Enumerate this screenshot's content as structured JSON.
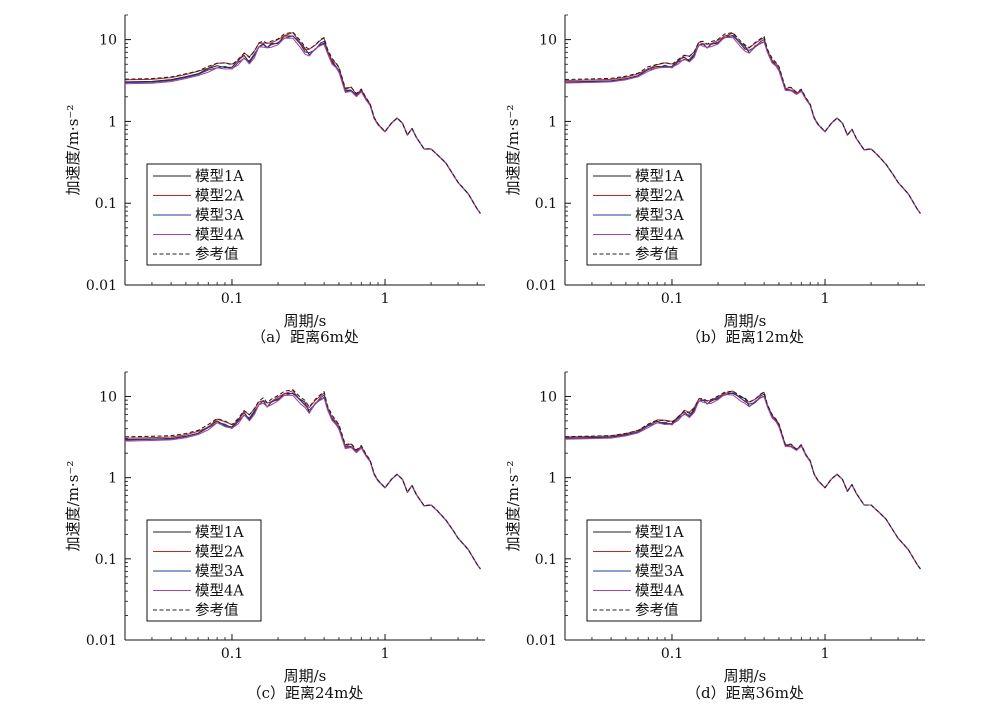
{
  "chart_data": [
    {
      "type": "line",
      "caption": "（a）距离6m处",
      "xlabel": "周期/s",
      "ylabel": "加速度/m·s⁻²",
      "xscale": "log",
      "yscale": "log",
      "xlim": [
        0.02,
        4.5
      ],
      "ylim": [
        0.01,
        20
      ],
      "xticks": [
        "0.1",
        "1"
      ],
      "yticks": [
        "0.01",
        "0.1",
        "1",
        "10"
      ],
      "legend_position": "lower-left",
      "series": [
        {
          "name": "模型1A",
          "color": "#222222",
          "dash": "solid",
          "scale": 0.98
        },
        {
          "name": "模型2A",
          "color": "#c0262c",
          "dash": "solid",
          "scale": 1.04
        },
        {
          "name": "模型3A",
          "color": "#1f3f8f",
          "dash": "solid",
          "scale": 0.96
        },
        {
          "name": "模型4A",
          "color": "#b0409a",
          "dash": "solid",
          "scale": 0.93
        },
        {
          "name": "参考值",
          "color": "#222222",
          "dash": "dashed",
          "scale": 1.06
        }
      ],
      "x": [
        0.02,
        0.03,
        0.04,
        0.05,
        0.06,
        0.07,
        0.08,
        0.09,
        0.1,
        0.11,
        0.12,
        0.13,
        0.14,
        0.15,
        0.16,
        0.17,
        0.18,
        0.2,
        0.22,
        0.25,
        0.28,
        0.3,
        0.32,
        0.35,
        0.38,
        0.4,
        0.42,
        0.45,
        0.48,
        0.5,
        0.55,
        0.6,
        0.65,
        0.7,
        0.75,
        0.8,
        0.85,
        0.9,
        1.0,
        1.1,
        1.2,
        1.3,
        1.4,
        1.5,
        1.6,
        1.8,
        2.0,
        2.2,
        2.5,
        2.8,
        3.0,
        3.5,
        4.0,
        4.2
      ],
      "reference": [
        3.1,
        3.15,
        3.3,
        3.6,
        3.9,
        4.4,
        4.8,
        4.8,
        4.6,
        5.4,
        6.3,
        5.6,
        6.7,
        8.5,
        8.9,
        8.4,
        8.9,
        9.4,
        11.0,
        11.5,
        9.0,
        7.5,
        7.0,
        8.0,
        9.3,
        9.8,
        7.2,
        5.5,
        4.8,
        4.3,
        2.4,
        2.5,
        2.1,
        2.4,
        1.9,
        1.6,
        1.1,
        0.92,
        0.75,
        0.95,
        1.1,
        0.95,
        0.68,
        0.82,
        0.64,
        0.46,
        0.46,
        0.39,
        0.31,
        0.22,
        0.18,
        0.13,
        0.085,
        0.075
      ]
    },
    {
      "type": "line",
      "caption": "（b）距离12m处",
      "xlabel": "周期/s",
      "ylabel": "加速度/m·s⁻²",
      "xscale": "log",
      "yscale": "log",
      "xlim": [
        0.02,
        4.5
      ],
      "ylim": [
        0.01,
        20
      ],
      "xticks": [
        "0.1",
        "1"
      ],
      "yticks": [
        "0.01",
        "0.1",
        "1",
        "10"
      ],
      "legend_position": "lower-left",
      "series": [
        {
          "name": "模型1A",
          "color": "#222222",
          "dash": "solid",
          "scale": 0.98
        },
        {
          "name": "模型2A",
          "color": "#c0262c",
          "dash": "solid",
          "scale": 1.02
        },
        {
          "name": "模型3A",
          "color": "#1f3f8f",
          "dash": "solid",
          "scale": 0.97
        },
        {
          "name": "模型4A",
          "color": "#b0409a",
          "dash": "solid",
          "scale": 0.95
        },
        {
          "name": "参考值",
          "color": "#222222",
          "dash": "dashed",
          "scale": 1.05
        }
      ],
      "x": [
        0.02,
        0.03,
        0.04,
        0.05,
        0.06,
        0.07,
        0.08,
        0.09,
        0.1,
        0.11,
        0.12,
        0.13,
        0.14,
        0.15,
        0.16,
        0.17,
        0.18,
        0.2,
        0.22,
        0.25,
        0.28,
        0.3,
        0.32,
        0.35,
        0.38,
        0.4,
        0.42,
        0.45,
        0.48,
        0.5,
        0.55,
        0.6,
        0.65,
        0.7,
        0.75,
        0.8,
        0.85,
        0.9,
        1.0,
        1.1,
        1.2,
        1.3,
        1.4,
        1.5,
        1.6,
        1.8,
        2.0,
        2.2,
        2.5,
        2.8,
        3.0,
        3.5,
        4.0,
        4.2
      ],
      "reference": [
        3.1,
        3.15,
        3.2,
        3.4,
        3.7,
        4.4,
        4.7,
        4.9,
        4.7,
        5.4,
        6.0,
        5.8,
        6.7,
        8.9,
        8.9,
        8.3,
        8.9,
        9.4,
        11.0,
        11.5,
        9.0,
        8.0,
        7.4,
        8.6,
        9.6,
        10.2,
        7.2,
        5.6,
        4.9,
        4.4,
        2.5,
        2.5,
        2.2,
        2.4,
        1.9,
        1.6,
        1.1,
        0.92,
        0.75,
        0.95,
        1.1,
        0.95,
        0.68,
        0.8,
        0.62,
        0.45,
        0.46,
        0.39,
        0.3,
        0.22,
        0.18,
        0.13,
        0.085,
        0.075
      ]
    },
    {
      "type": "line",
      "caption": "（c）距离24m处",
      "xlabel": "周期/s",
      "ylabel": "加速度/m·s⁻²",
      "xscale": "log",
      "yscale": "log",
      "xlim": [
        0.02,
        4.5
      ],
      "ylim": [
        0.01,
        20
      ],
      "xticks": [
        "0.1",
        "1"
      ],
      "yticks": [
        "0.01",
        "0.1",
        "1",
        "10"
      ],
      "legend_position": "lower-left",
      "series": [
        {
          "name": "模型1A",
          "color": "#222222",
          "dash": "solid",
          "scale": 0.98
        },
        {
          "name": "模型2A",
          "color": "#c0262c",
          "dash": "solid",
          "scale": 1.02
        },
        {
          "name": "模型3A",
          "color": "#1f3f8f",
          "dash": "solid",
          "scale": 0.97
        },
        {
          "name": "模型4A",
          "color": "#b0409a",
          "dash": "solid",
          "scale": 0.94
        },
        {
          "name": "参考值",
          "color": "#222222",
          "dash": "dashed",
          "scale": 1.06
        }
      ],
      "x": [
        0.02,
        0.03,
        0.04,
        0.05,
        0.06,
        0.07,
        0.08,
        0.09,
        0.1,
        0.11,
        0.12,
        0.13,
        0.14,
        0.15,
        0.16,
        0.17,
        0.18,
        0.2,
        0.22,
        0.25,
        0.28,
        0.3,
        0.32,
        0.35,
        0.38,
        0.4,
        0.42,
        0.45,
        0.48,
        0.5,
        0.55,
        0.6,
        0.65,
        0.7,
        0.75,
        0.8,
        0.85,
        0.9,
        1.0,
        1.1,
        1.2,
        1.3,
        1.4,
        1.5,
        1.6,
        1.8,
        2.0,
        2.2,
        2.5,
        2.8,
        3.0,
        3.5,
        4.0,
        4.2
      ],
      "reference": [
        3.0,
        3.05,
        3.1,
        3.3,
        3.6,
        4.2,
        5.0,
        4.6,
        4.2,
        5.0,
        6.2,
        5.5,
        6.6,
        8.2,
        8.9,
        7.8,
        8.6,
        9.5,
        10.8,
        11.3,
        9.0,
        8.2,
        6.8,
        8.5,
        9.8,
        10.6,
        7.2,
        5.5,
        4.7,
        4.2,
        2.4,
        2.5,
        2.1,
        2.4,
        1.9,
        1.6,
        1.1,
        0.92,
        0.75,
        0.95,
        1.1,
        0.95,
        0.66,
        0.8,
        0.62,
        0.45,
        0.46,
        0.39,
        0.3,
        0.22,
        0.18,
        0.13,
        0.085,
        0.075
      ]
    },
    {
      "type": "line",
      "caption": "（d）距离36m处",
      "xlabel": "周期/s",
      "ylabel": "加速度/m·s⁻²",
      "xscale": "log",
      "yscale": "log",
      "xlim": [
        0.02,
        4.5
      ],
      "ylim": [
        0.01,
        20
      ],
      "xticks": [
        "0.1",
        "1"
      ],
      "yticks": [
        "0.01",
        "0.1",
        "1",
        "10"
      ],
      "legend_position": "lower-left",
      "series": [
        {
          "name": "模型1A",
          "color": "#222222",
          "dash": "solid",
          "scale": 0.99
        },
        {
          "name": "模型2A",
          "color": "#c0262c",
          "dash": "solid",
          "scale": 1.02
        },
        {
          "name": "模型3A",
          "color": "#1f3f8f",
          "dash": "solid",
          "scale": 0.98
        },
        {
          "name": "模型4A",
          "color": "#b0409a",
          "dash": "solid",
          "scale": 0.96
        },
        {
          "name": "参考值",
          "color": "#222222",
          "dash": "dashed",
          "scale": 1.03
        }
      ],
      "x": [
        0.02,
        0.03,
        0.04,
        0.05,
        0.06,
        0.07,
        0.08,
        0.09,
        0.1,
        0.11,
        0.12,
        0.13,
        0.14,
        0.15,
        0.16,
        0.17,
        0.18,
        0.2,
        0.22,
        0.25,
        0.28,
        0.3,
        0.32,
        0.35,
        0.38,
        0.4,
        0.42,
        0.45,
        0.48,
        0.5,
        0.55,
        0.6,
        0.65,
        0.7,
        0.75,
        0.8,
        0.85,
        0.9,
        1.0,
        1.1,
        1.2,
        1.3,
        1.4,
        1.5,
        1.6,
        1.8,
        2.0,
        2.2,
        2.5,
        2.8,
        3.0,
        3.5,
        4.0,
        4.2
      ],
      "reference": [
        3.1,
        3.15,
        3.2,
        3.4,
        3.7,
        4.4,
        4.9,
        4.8,
        4.6,
        5.4,
        6.3,
        5.9,
        6.9,
        9.0,
        9.0,
        8.4,
        8.8,
        9.6,
        10.8,
        11.2,
        9.6,
        9.0,
        8.0,
        8.8,
        10.2,
        10.8,
        7.6,
        5.8,
        5.0,
        4.4,
        2.5,
        2.5,
        2.2,
        2.5,
        1.9,
        1.6,
        1.1,
        0.92,
        0.75,
        0.96,
        1.1,
        0.95,
        0.68,
        0.82,
        0.64,
        0.46,
        0.46,
        0.39,
        0.31,
        0.22,
        0.18,
        0.13,
        0.085,
        0.075
      ]
    }
  ]
}
